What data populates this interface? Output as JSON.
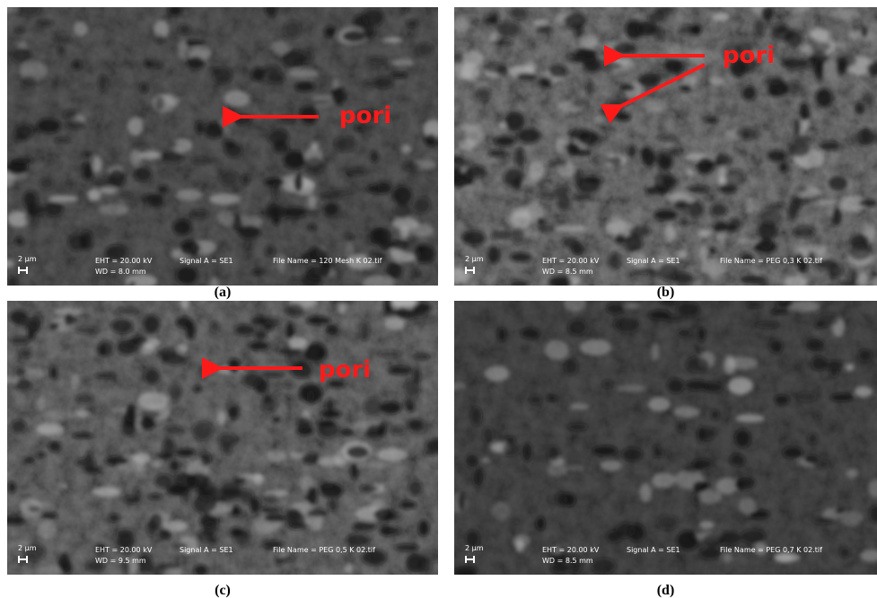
{
  "panels": [
    {
      "caption": "(a)",
      "scale": "2 µm",
      "eht": "EHT = 20.00 kV",
      "signal": "Signal A = SE1",
      "file": "File Name = 120 Mesh K 02.tif",
      "wd": "WD =  8.0 mm",
      "annotation": "pori"
    },
    {
      "caption": "(b)",
      "scale": "2 µm",
      "eht": "EHT = 20.00 kV",
      "signal": "Signal A = SE1",
      "file": "File Name = PEG 0,3 K 02.tif",
      "wd": "WD =  8.5 mm",
      "annotation": "pori"
    },
    {
      "caption": "(c)",
      "scale": "2 µm",
      "eht": "EHT = 20.00 kV",
      "signal": "Signal A = SE1",
      "file": "File Name = PEG 0,5 K 02.tif",
      "wd": "WD =  9.5 mm",
      "annotation": "pori"
    },
    {
      "caption": "(d)",
      "scale": "2 µm",
      "eht": "EHT = 20.00 kV",
      "signal": "Signal A = SE1",
      "file": "File Name = PEG 0,7 K 02.tif",
      "wd": "WD =  8.5 mm"
    }
  ]
}
